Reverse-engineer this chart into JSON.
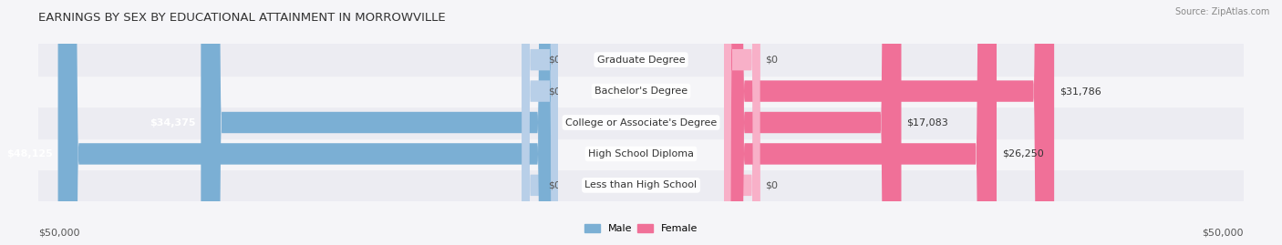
{
  "title": "EARNINGS BY SEX BY EDUCATIONAL ATTAINMENT IN MORROWVILLE",
  "source": "Source: ZipAtlas.com",
  "categories": [
    "Less than High School",
    "High School Diploma",
    "College or Associate's Degree",
    "Bachelor's Degree",
    "Graduate Degree"
  ],
  "male_values": [
    0,
    48125,
    34375,
    0,
    0
  ],
  "female_values": [
    0,
    26250,
    17083,
    31786,
    0
  ],
  "male_color": "#7bafd4",
  "female_color": "#f07098",
  "male_stub_color": "#b8cfe8",
  "female_stub_color": "#f8b0c8",
  "male_label": "Male",
  "female_label": "Female",
  "row_bg_color_odd": "#ececf2",
  "row_bg_color_even": "#f5f5f8",
  "max_value": 50000,
  "xlabel_left": "$50,000",
  "xlabel_right": "$50,000",
  "title_fontsize": 9.5,
  "label_fontsize": 8,
  "value_fontsize": 8,
  "tick_fontsize": 8,
  "figsize": [
    14.06,
    2.69
  ],
  "dpi": 100
}
